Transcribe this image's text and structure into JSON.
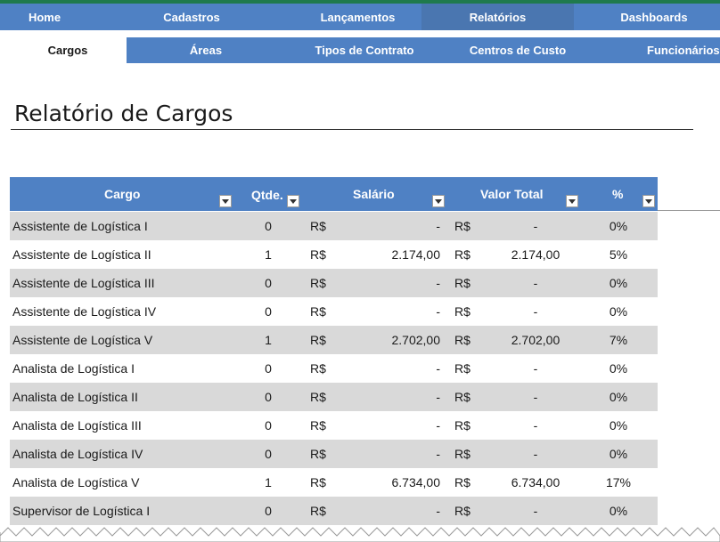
{
  "nav_primary": [
    {
      "label": "Home"
    },
    {
      "label": "Cadastros"
    },
    {
      "label": "Lançamentos"
    },
    {
      "label": "Relatórios",
      "active": true
    },
    {
      "label": "Dashboards"
    }
  ],
  "nav_secondary": [
    {
      "label": "Cargos",
      "active": true
    },
    {
      "label": "Áreas"
    },
    {
      "label": "Tipos de Contrato"
    },
    {
      "label": "Centros de Custo"
    },
    {
      "label": "Funcionários"
    }
  ],
  "page_title": "Relatório de Cargos",
  "table": {
    "headers": {
      "cargo": "Cargo",
      "qtde": "Qtde.",
      "salario": "Salário",
      "valor_total": "Valor Total",
      "pct": "%"
    },
    "currency": "R$",
    "rows": [
      {
        "cargo": "Assistente de Logística I",
        "qtde": "0",
        "salario": "-",
        "valor_total": "-",
        "pct": "0%"
      },
      {
        "cargo": "Assistente de Logística II",
        "qtde": "1",
        "salario": "2.174,00",
        "valor_total": "2.174,00",
        "pct": "5%"
      },
      {
        "cargo": "Assistente de Logística III",
        "qtde": "0",
        "salario": "-",
        "valor_total": "-",
        "pct": "0%"
      },
      {
        "cargo": "Assistente de Logística IV",
        "qtde": "0",
        "salario": "-",
        "valor_total": "-",
        "pct": "0%"
      },
      {
        "cargo": "Assistente de Logística V",
        "qtde": "1",
        "salario": "2.702,00",
        "valor_total": "2.702,00",
        "pct": "7%"
      },
      {
        "cargo": "Analista de Logística I",
        "qtde": "0",
        "salario": "-",
        "valor_total": "-",
        "pct": "0%"
      },
      {
        "cargo": "Analista de Logística II",
        "qtde": "0",
        "salario": "-",
        "valor_total": "-",
        "pct": "0%"
      },
      {
        "cargo": "Analista de Logística III",
        "qtde": "0",
        "salario": "-",
        "valor_total": "-",
        "pct": "0%"
      },
      {
        "cargo": "Analista de Logística IV",
        "qtde": "0",
        "salario": "-",
        "valor_total": "-",
        "pct": "0%"
      },
      {
        "cargo": "Analista de Logística V",
        "qtde": "1",
        "salario": "6.734,00",
        "valor_total": "6.734,00",
        "pct": "17%"
      },
      {
        "cargo": "Supervisor de Logística I",
        "qtde": "0",
        "salario": "-",
        "valor_total": "-",
        "pct": "0%"
      }
    ]
  },
  "colors": {
    "nav_blue": "#4f81c4",
    "nav_active": "#4a76b0",
    "row_shade": "#d9d9d9",
    "top_accent": "#1f7a4d"
  }
}
